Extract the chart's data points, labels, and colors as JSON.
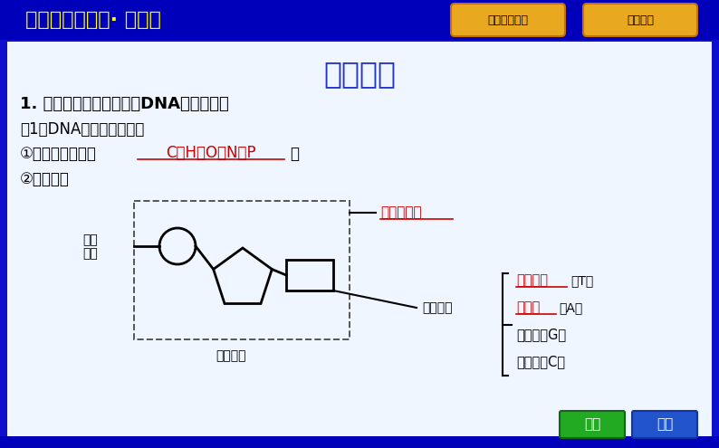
{
  "bg_color": "#1010cc",
  "header_bg": "#0000bb",
  "header_text": "高中（新教材）· 生物学",
  "header_text_color": "#ffff00",
  "header_fontsize": 16,
  "title": "内容梳理",
  "title_color": "#1a3fcc",
  "title_fontsize": 24,
  "nav_btn1": "返回栏目导航",
  "nav_btn2": "返回目录",
  "nav_btn_color_top": "#f5c842",
  "nav_btn_color_bot": "#c87800",
  "nav_btn_text_color": "#000000",
  "bottom_btn1_text": "上页",
  "bottom_btn1_color": "#22aa22",
  "bottom_btn2_text": "下页",
  "bottom_btn2_color": "#2255cc",
  "bottom_btn_text_color": "#ffffff",
  "line1": "1. 双螺旋结构模型揭示了DNA分子的结构",
  "line2": "（1）DNA分子的化学组成",
  "line3_prefix": "①基本组成元素：",
  "line3_fill": "C、H、O、N、P",
  "line3_suffix": "。",
  "line4": "②基本单位",
  "label_phosphate_1": "磷酸",
  "label_phosphate_2": "基团",
  "label_sugar": "脱氧核糖",
  "label_base": "含氮碱基",
  "label_nucleotide": "脱氧核苷酸",
  "label_T": "胸腺嘧啶",
  "label_T_letter": "（T）",
  "label_A": "腺嘌呤",
  "label_A_letter": "（A）",
  "label_G": "鸟嘌呤（G）",
  "label_C": "胞嘧啶（C）",
  "red_color": "#cc0000",
  "black_color": "#000000",
  "body_bg": "#ffffff"
}
